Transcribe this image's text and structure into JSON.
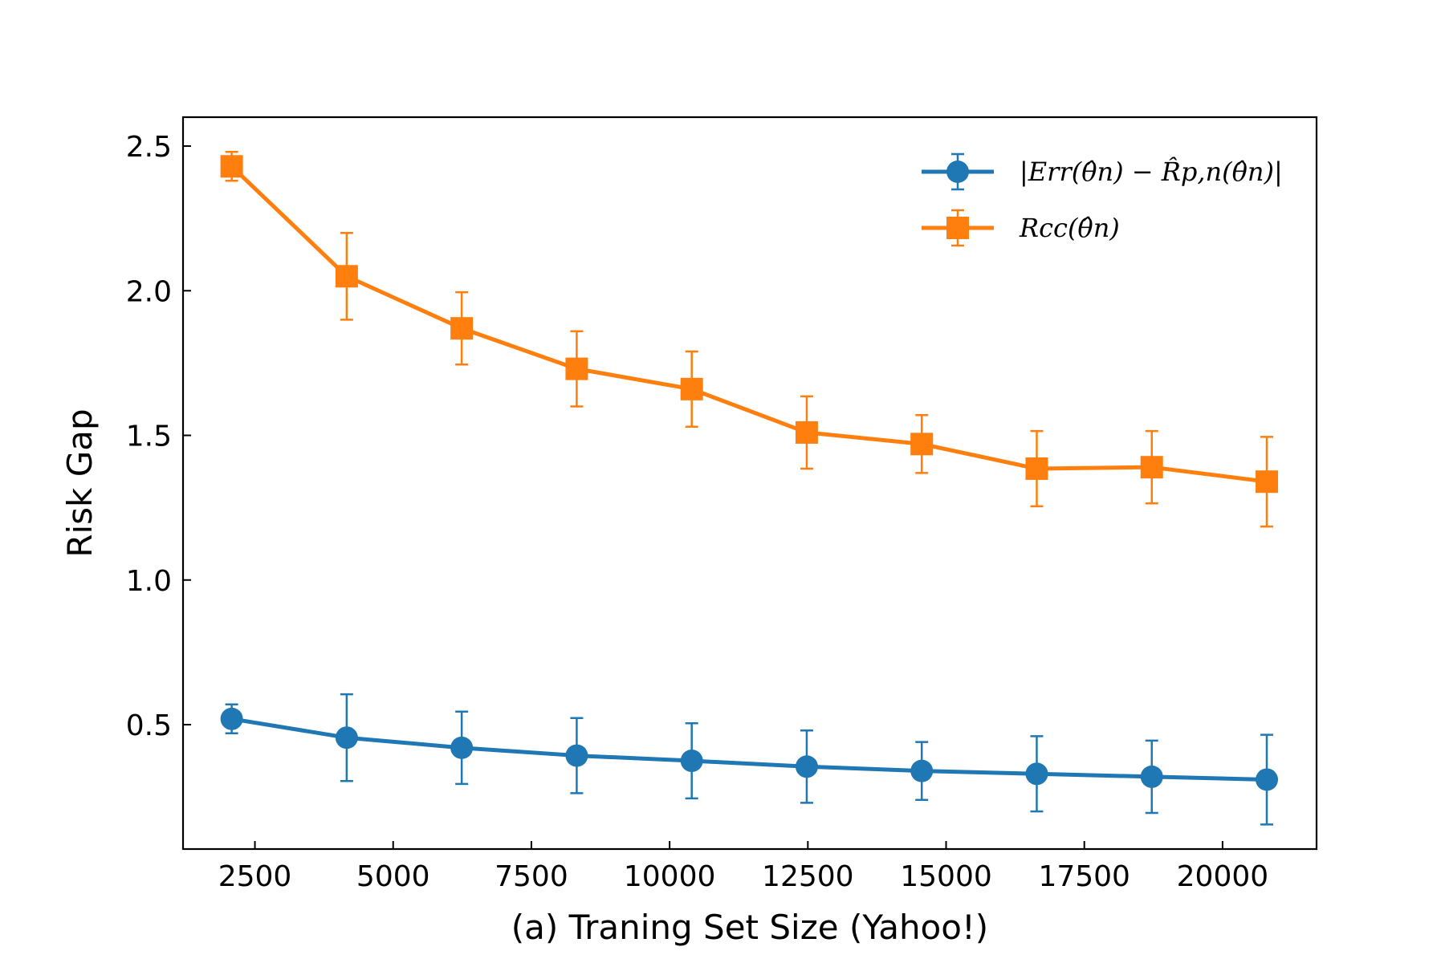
{
  "chart_data": {
    "type": "line",
    "xlabel": "(a) Traning Set Size (Yahoo!)",
    "ylabel": "Risk Gap",
    "xlim": [
      1200,
      21700
    ],
    "ylim": [
      0.07,
      2.6
    ],
    "xticks": [
      2500,
      5000,
      7500,
      10000,
      12500,
      15000,
      17500,
      20000
    ],
    "yticks": [
      0.5,
      1.0,
      1.5,
      2.0,
      2.5
    ],
    "xtick_labels": [
      "2500",
      "5000",
      "7500",
      "10000",
      "12500",
      "15000",
      "17500",
      "20000"
    ],
    "ytick_labels": [
      "0.5",
      "1.0",
      "1.5",
      "2.0",
      "2.5"
    ],
    "legend_position": "top-right",
    "x": [
      2080,
      4160,
      6240,
      8320,
      10400,
      12480,
      14560,
      16640,
      18720,
      20800
    ],
    "series": [
      {
        "name": "|Err(θ̂n) − R̂p,n(θ̂n)|",
        "color": "#1f77b4",
        "marker": "circle",
        "values": [
          0.52,
          0.455,
          0.42,
          0.393,
          0.375,
          0.355,
          0.34,
          0.33,
          0.32,
          0.31
        ],
        "errors": [
          0.05,
          0.15,
          0.125,
          0.13,
          0.13,
          0.125,
          0.1,
          0.13,
          0.125,
          0.155
        ]
      },
      {
        "name": "Rcc(θ̂n)",
        "color": "#ff7f0e",
        "marker": "square",
        "values": [
          2.43,
          2.05,
          1.87,
          1.73,
          1.66,
          1.51,
          1.47,
          1.385,
          1.39,
          1.34
        ],
        "errors": [
          0.05,
          0.15,
          0.125,
          0.13,
          0.13,
          0.125,
          0.1,
          0.13,
          0.125,
          0.155
        ]
      }
    ]
  }
}
